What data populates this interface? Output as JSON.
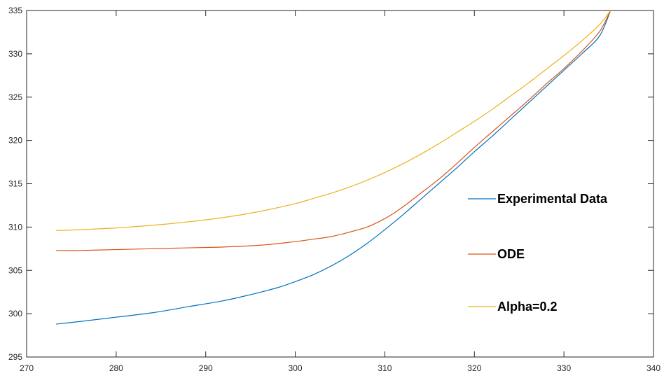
{
  "chart_data": {
    "type": "line",
    "title": "",
    "xlabel": "",
    "ylabel": "",
    "xlim": [
      270,
      340
    ],
    "ylim": [
      295,
      335
    ],
    "xticks": [
      270,
      280,
      290,
      300,
      310,
      320,
      330,
      340
    ],
    "yticks": [
      295,
      300,
      305,
      310,
      315,
      320,
      325,
      330,
      335
    ],
    "grid": false,
    "legend_position": "right",
    "series": [
      {
        "name": "Experimental Data",
        "color": "#0072BD",
        "x": [
          273.3,
          276,
          280,
          284,
          288,
          292,
          295,
          298,
          300,
          302,
          304,
          306,
          308,
          310,
          312,
          314,
          316,
          318,
          320,
          322,
          324,
          326,
          328,
          330,
          332,
          334,
          335.2
        ],
        "y": [
          298.8,
          299.1,
          299.6,
          300.1,
          300.8,
          301.5,
          302.2,
          303.0,
          303.7,
          304.5,
          305.5,
          306.7,
          308.1,
          309.7,
          311.4,
          313.2,
          315.0,
          316.8,
          318.7,
          320.5,
          322.4,
          324.3,
          326.2,
          328.1,
          330.0,
          332.1,
          335.0
        ]
      },
      {
        "name": "ODE",
        "color": "#D95319",
        "x": [
          273.3,
          276,
          280,
          284,
          288,
          292,
          296,
          299,
          302,
          304,
          306,
          308,
          309.5,
          311,
          312.5,
          314,
          316,
          318,
          320,
          322,
          324,
          326,
          328,
          330,
          332,
          334,
          335.2
        ],
        "y": [
          307.3,
          307.3,
          307.4,
          307.5,
          307.6,
          307.7,
          307.9,
          308.2,
          308.6,
          308.9,
          309.4,
          310.0,
          310.7,
          311.6,
          312.7,
          313.9,
          315.5,
          317.3,
          319.2,
          321.0,
          322.8,
          324.6,
          326.5,
          328.3,
          330.3,
          332.6,
          335.0
        ]
      },
      {
        "name": "Alpha=0.2",
        "color": "#EDB120",
        "x": [
          273.3,
          276,
          280,
          284,
          288,
          292,
          296,
          300,
          302,
          304,
          306,
          308,
          310,
          312,
          314,
          316,
          318,
          320,
          322,
          324,
          326,
          328,
          330,
          332,
          334,
          335.2
        ],
        "y": [
          309.6,
          309.7,
          309.9,
          310.2,
          310.6,
          311.1,
          311.8,
          312.7,
          313.3,
          313.9,
          314.6,
          315.4,
          316.3,
          317.3,
          318.4,
          319.6,
          320.9,
          322.2,
          323.6,
          325.1,
          326.6,
          328.2,
          329.8,
          331.5,
          333.4,
          335.0
        ]
      }
    ]
  }
}
